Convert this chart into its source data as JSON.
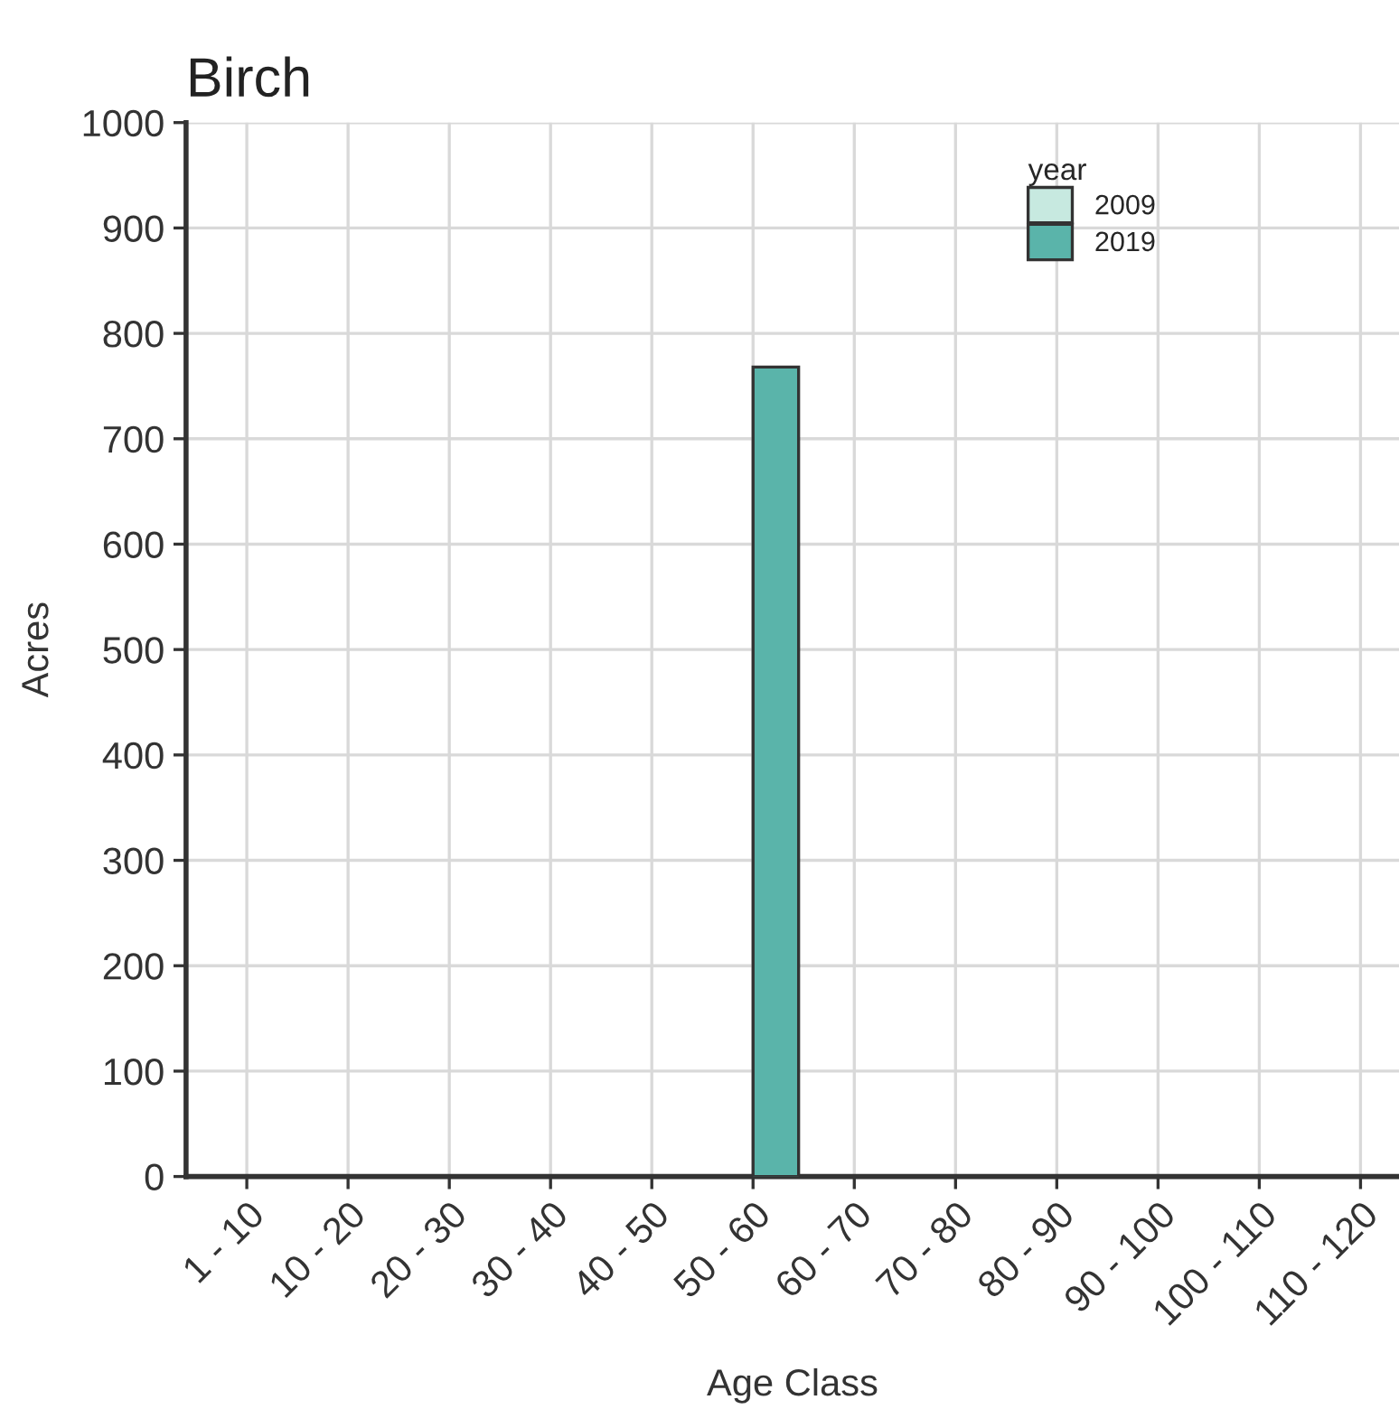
{
  "chart_data": {
    "type": "bar",
    "title": "Birch",
    "xlabel": "Age Class",
    "ylabel": "Acres",
    "legend_title": "year",
    "categories": [
      "1 - 10",
      "10 - 20",
      "20 - 30",
      "30 - 40",
      "40 - 50",
      "50 - 60",
      "60 - 70",
      "70 - 80",
      "80 - 90",
      "90 - 100",
      "100 - 110",
      "110 - 120"
    ],
    "series": [
      {
        "name": "2009",
        "color": "#c7e9e0",
        "values": [
          null,
          null,
          null,
          null,
          null,
          null,
          null,
          null,
          null,
          null,
          null,
          null
        ]
      },
      {
        "name": "2019",
        "color": "#5ab4aa",
        "values": [
          null,
          null,
          null,
          null,
          null,
          768,
          null,
          null,
          null,
          null,
          null,
          null
        ]
      }
    ],
    "ylim": [
      0,
      1000
    ],
    "yticks": [
      0,
      100,
      200,
      300,
      400,
      500,
      600,
      700,
      800,
      900,
      1000
    ],
    "grid": true,
    "legend": "top right"
  }
}
